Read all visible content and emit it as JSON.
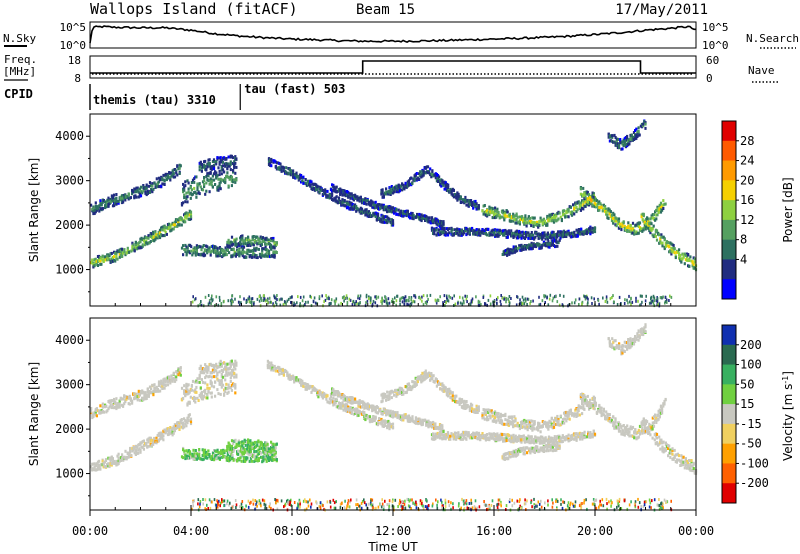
{
  "chart_data": {
    "type": "heatmap",
    "header": {
      "title": "Wallops Island (fitACF)",
      "beam": "Beam 15",
      "date": "17/May/2011"
    },
    "top_panels": {
      "nsky": {
        "label": "N.Sky",
        "left_ticks": [
          "10^5",
          "10^0"
        ],
        "right_ticks": [
          "10^5",
          "10^0"
        ],
        "right_label": "N.Search",
        "hours": [
          0.0,
          0.1,
          0.5,
          1,
          2,
          3,
          4,
          5,
          6,
          7,
          8,
          9,
          10,
          11,
          12,
          13,
          14,
          15,
          16,
          17,
          18,
          19,
          20,
          21,
          22,
          23,
          23.7,
          24
        ],
        "values": [
          0.15,
          0.82,
          0.85,
          0.82,
          0.8,
          0.8,
          0.7,
          0.55,
          0.45,
          0.38,
          0.33,
          0.3,
          0.26,
          0.24,
          0.24,
          0.25,
          0.27,
          0.3,
          0.33,
          0.36,
          0.4,
          0.45,
          0.52,
          0.6,
          0.7,
          0.78,
          0.85,
          0.7
        ]
      },
      "freq": {
        "label": "Freq.",
        "unit": "[MHz]",
        "left_ticks": [
          "18",
          "8"
        ],
        "right_ticks": [
          "60",
          "0"
        ],
        "right_label": "Nave",
        "freq_steps": [
          {
            "from": 0.0,
            "to": 10.8,
            "mhz": 10
          },
          {
            "from": 10.8,
            "to": 21.8,
            "mhz": 16
          },
          {
            "from": 21.8,
            "to": 24.0,
            "mhz": 10
          }
        ],
        "ylim": [
          8,
          18
        ]
      },
      "cpid": {
        "label": "CPID",
        "segments": [
          {
            "from": 0.0,
            "to": 5.95,
            "name": "themis (tau)",
            "id": "3310"
          },
          {
            "from": 5.95,
            "to": 24.0,
            "name": "tau (fast)",
            "id": "503"
          }
        ]
      }
    },
    "power_panel": {
      "ylabel": "Slant Range [km]",
      "ylim": [
        180,
        4500
      ],
      "yticks": [
        1000,
        2000,
        3000,
        4000
      ],
      "colorbar": {
        "label": "Power [dB]",
        "ticks": [
          "28",
          "24",
          "20",
          "16",
          "12",
          "8",
          "4"
        ],
        "colors": [
          "#e00000",
          "#ff5a00",
          "#ff9a00",
          "#f5d000",
          "#8ed040",
          "#55a060",
          "#2d7060",
          "#202c80",
          "#0000ff"
        ]
      }
    },
    "velocity_panel": {
      "ylabel": "Slant Range [km]",
      "ylim": [
        180,
        4500
      ],
      "yticks": [
        1000,
        2000,
        3000,
        4000
      ],
      "colorbar": {
        "label": "Velocity [m s^-1]",
        "ticks": [
          "200",
          "100",
          "50",
          "15",
          "-15",
          "-50",
          "-100",
          "-200"
        ],
        "colors": [
          "#1030b0",
          "#2a6a50",
          "#38b060",
          "#70d040",
          "#c8c8c0",
          "#f0d060",
          "#ffa000",
          "#ff6000",
          "#e00000"
        ]
      }
    },
    "xaxis": {
      "label": "Time UT",
      "ticks": [
        "00:00",
        "04:00",
        "08:00",
        "12:00",
        "16:00",
        "20:00",
        "00:00"
      ],
      "xlim": [
        0,
        24
      ]
    },
    "echo_bands": [
      {
        "name": "early-rise",
        "hours": [
          0.0,
          1.0,
          2.0,
          3.0,
          4.0
        ],
        "ranges": [
          1150,
          1300,
          1600,
          1900,
          2250
        ],
        "w": 110,
        "peak": 18,
        "vtype": "ground"
      },
      {
        "name": "early-high",
        "hours": [
          0.0,
          0.6,
          1.4,
          2.2,
          3.0,
          3.6
        ],
        "ranges": [
          2350,
          2500,
          2650,
          2800,
          3050,
          3300
        ],
        "w": 120,
        "peak": 10,
        "vtype": "ground"
      },
      {
        "name": "f-patch",
        "hours": [
          3.6,
          4.3,
          5.0,
          5.8
        ],
        "ranges": [
          2700,
          2900,
          3000,
          3050
        ],
        "w": 260,
        "peak": 12,
        "vtype": "ground"
      },
      {
        "name": "f-top",
        "hours": [
          4.3,
          5.0,
          5.8
        ],
        "ranges": [
          3300,
          3400,
          3450
        ],
        "w": 120,
        "peak": 8,
        "vtype": "ground"
      },
      {
        "name": "e-low",
        "hours": [
          3.6,
          4.6,
          5.6,
          6.6,
          7.4
        ],
        "ranges": [
          1450,
          1420,
          1400,
          1380,
          1400
        ],
        "w": 120,
        "peak": 12,
        "vtype": "positive"
      },
      {
        "name": "e-low2",
        "hours": [
          5.4,
          6.4,
          7.4
        ],
        "ranges": [
          1650,
          1650,
          1580
        ],
        "w": 110,
        "peak": 13,
        "vtype": "positive"
      },
      {
        "name": "mid-diag",
        "hours": [
          7.0,
          8.0,
          9.0,
          10.0,
          11.0,
          12.0
        ],
        "ranges": [
          3450,
          3150,
          2800,
          2500,
          2250,
          2050
        ],
        "w": 80,
        "peak": 8,
        "vtype": "ground"
      },
      {
        "name": "mid-diag2",
        "hours": [
          9.5,
          10.5,
          11.5,
          12.5,
          13.5,
          14.0
        ],
        "ranges": [
          2850,
          2600,
          2400,
          2250,
          2100,
          2000
        ],
        "w": 70,
        "peak": 7,
        "vtype": "ground"
      },
      {
        "name": "mid-1800",
        "hours": [
          13.5,
          15.0,
          16.5,
          18.0,
          19.0,
          20.0
        ],
        "ranges": [
          1850,
          1850,
          1800,
          1750,
          1800,
          1900
        ],
        "w": 80,
        "peak": 8,
        "vtype": "ground"
      },
      {
        "name": "mid-1550",
        "hours": [
          16.3,
          17.0,
          17.8,
          18.6
        ],
        "ranges": [
          1350,
          1500,
          1550,
          1600
        ],
        "w": 70,
        "peak": 8,
        "vtype": "ground"
      },
      {
        "name": "arc-one",
        "hours": [
          11.5,
          12.5,
          13.3,
          14.0,
          14.6,
          15.4
        ],
        "ranges": [
          2700,
          2900,
          3250,
          2900,
          2600,
          2400
        ],
        "w": 90,
        "peak": 8,
        "vtype": "ground"
      },
      {
        "name": "arc-two",
        "hours": [
          15.5,
          16.5,
          17.2,
          17.8,
          18.6,
          19.4,
          20.0
        ],
        "ranges": [
          2350,
          2200,
          2100,
          2050,
          2200,
          2450,
          2650
        ],
        "w": 120,
        "peak": 18,
        "vtype": "ground"
      },
      {
        "name": "arc-three",
        "hours": [
          19.4,
          20.4,
          21.0,
          21.6,
          22.2,
          22.8
        ],
        "ranges": [
          2750,
          2300,
          2000,
          1900,
          2100,
          2600
        ],
        "w": 120,
        "peak": 20,
        "vtype": "ground"
      },
      {
        "name": "late-diag",
        "hours": [
          21.8,
          22.5,
          23.2,
          24.0
        ],
        "ranges": [
          2200,
          1700,
          1350,
          1100
        ],
        "w": 130,
        "peak": 20,
        "vtype": "ground"
      },
      {
        "name": "late-top",
        "hours": [
          20.5,
          21.0,
          21.5,
          22.0
        ],
        "ranges": [
          4000,
          3800,
          4000,
          4300
        ],
        "w": 110,
        "peak": 9,
        "vtype": "ground"
      }
    ],
    "near_range": {
      "from_hour": 4.0,
      "to_hour": 23.0,
      "range_max": 420,
      "peak": 14
    }
  }
}
